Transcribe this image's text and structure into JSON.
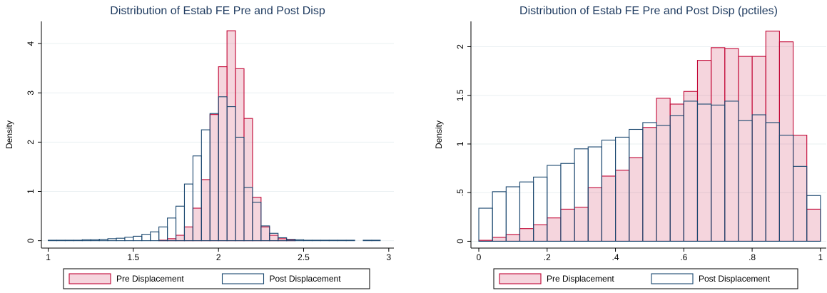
{
  "chart_data": [
    {
      "type": "histogram",
      "title": "Distribution of Estab FE Pre and Post Disp",
      "ylabel": "Density",
      "bins": [
        1.0,
        1.05,
        1.1,
        1.15,
        1.2,
        1.25,
        1.3,
        1.35,
        1.4,
        1.45,
        1.5,
        1.55,
        1.6,
        1.65,
        1.7,
        1.75,
        1.8,
        1.85,
        1.9,
        1.95,
        2.0,
        2.05,
        2.1,
        2.15,
        2.2,
        2.25,
        2.3,
        2.35,
        2.4,
        2.45,
        2.5,
        2.55,
        2.6,
        2.65,
        2.7,
        2.75,
        2.8,
        2.85,
        2.9,
        2.95
      ],
      "series": [
        {
          "name": "Pre Displacement",
          "color": "#c10534",
          "filled": true,
          "values": [
            0,
            0,
            0,
            0,
            0,
            0,
            0,
            0,
            0,
            0,
            0,
            0,
            0,
            0.01,
            0.04,
            0.11,
            0.28,
            0.66,
            1.24,
            2.56,
            3.53,
            4.26,
            3.49,
            2.48,
            0.88,
            0.28,
            0.11,
            0.04,
            0.01,
            0,
            0,
            0,
            0,
            0,
            0,
            0,
            0,
            0,
            0
          ]
        },
        {
          "name": "Post Displacement",
          "color": "#1a476f",
          "filled": false,
          "values": [
            0.01,
            0.01,
            0.01,
            0.01,
            0.02,
            0.02,
            0.03,
            0.04,
            0.05,
            0.07,
            0.09,
            0.13,
            0.18,
            0.28,
            0.46,
            0.7,
            1.15,
            1.72,
            2.25,
            2.58,
            2.92,
            2.72,
            2.1,
            1.08,
            0.78,
            0.3,
            0.15,
            0.06,
            0.03,
            0.02,
            0.01,
            0.01,
            0.01,
            0.01,
            0.01,
            0.01,
            0,
            0.01,
            0.01
          ]
        }
      ],
      "xlim": [
        0.96,
        3.03
      ],
      "ylim": [
        -0.15,
        4.45
      ],
      "xticks": [
        1,
        1.5,
        2,
        2.5,
        3
      ],
      "yticks": [
        0,
        1,
        2,
        3,
        4
      ],
      "grid": true,
      "legend": "bottom"
    },
    {
      "type": "histogram",
      "title": "Distribution of Estab FE Pre and Post Disp (pctiles)",
      "ylabel": "Density",
      "bins": [
        0,
        0.04,
        0.08,
        0.12,
        0.16,
        0.2,
        0.24,
        0.28,
        0.32,
        0.36,
        0.4,
        0.44,
        0.48,
        0.52,
        0.56,
        0.6,
        0.64,
        0.68,
        0.72,
        0.76,
        0.8,
        0.84,
        0.88,
        0.92,
        0.96,
        1.0
      ],
      "series": [
        {
          "name": "Pre Displacement",
          "color": "#c10534",
          "filled": true,
          "values": [
            0.01,
            0.04,
            0.07,
            0.13,
            0.17,
            0.24,
            0.33,
            0.35,
            0.55,
            0.67,
            0.73,
            0.86,
            1.17,
            1.47,
            1.41,
            1.54,
            1.86,
            1.99,
            1.98,
            1.9,
            1.9,
            2.16,
            2.05,
            1.09,
            0.33
          ]
        },
        {
          "name": "Post Displacement",
          "color": "#1a476f",
          "filled": false,
          "values": [
            0.34,
            0.51,
            0.56,
            0.61,
            0.66,
            0.78,
            0.8,
            0.95,
            0.97,
            1.04,
            1.07,
            1.15,
            1.22,
            1.19,
            1.29,
            1.44,
            1.41,
            1.4,
            1.44,
            1.24,
            1.3,
            1.22,
            1.09,
            0.77,
            0.47
          ]
        }
      ],
      "xlim": [
        -0.023,
        1.017
      ],
      "ylim": [
        -0.07,
        2.26
      ],
      "xticks": [
        0,
        {
          "value": 0.2,
          "label": ".2"
        },
        {
          "value": 0.4,
          "label": ".4"
        },
        {
          "value": 0.6,
          "label": ".6"
        },
        {
          "value": 0.8,
          "label": ".8"
        },
        1
      ],
      "yticks": [
        0,
        {
          "value": 0.5,
          "label": ".5"
        },
        1,
        {
          "value": 1.5,
          "label": "1.5"
        },
        2
      ],
      "grid": true,
      "legend": "bottom"
    }
  ]
}
